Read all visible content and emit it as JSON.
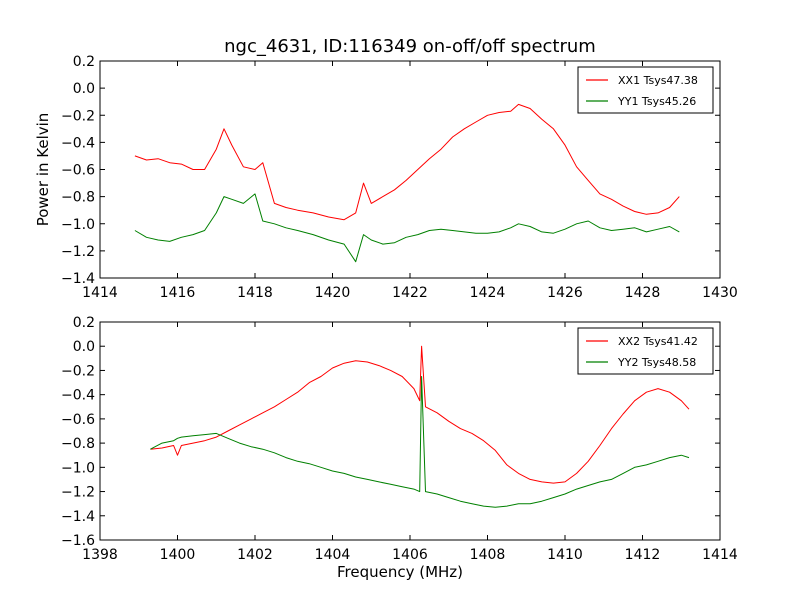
{
  "figure": {
    "title": "ngc_4631, ID:116349 on-off/off spectrum"
  },
  "chart_data": [
    {
      "type": "line",
      "title": "ngc_4631, ID:116349 on-off/off spectrum",
      "xlabel": "",
      "ylabel": "Power in Kelvin",
      "xlim": [
        1414,
        1430
      ],
      "ylim": [
        -1.4,
        0.2
      ],
      "xticks": [
        "1414",
        "1416",
        "1418",
        "1420",
        "1422",
        "1424",
        "1426",
        "1428",
        "1430"
      ],
      "yticks": [
        "0.2",
        "0.0",
        "−0.2",
        "−0.4",
        "−0.6",
        "−0.8",
        "−1.0",
        "−1.2",
        "−1.4"
      ],
      "grid": false,
      "legend_position": "top-right",
      "series": [
        {
          "name": "XX1 Tsys47.38",
          "color": "#ff0000",
          "x": [
            1414.9,
            1415.2,
            1415.5,
            1415.8,
            1416.1,
            1416.4,
            1416.7,
            1417.0,
            1417.2,
            1417.4,
            1417.7,
            1418.0,
            1418.2,
            1418.5,
            1418.8,
            1419.1,
            1419.5,
            1419.9,
            1420.3,
            1420.6,
            1420.8,
            1421.0,
            1421.3,
            1421.6,
            1421.9,
            1422.2,
            1422.5,
            1422.8,
            1423.1,
            1423.4,
            1423.7,
            1424.0,
            1424.3,
            1424.6,
            1424.8,
            1425.1,
            1425.4,
            1425.7,
            1426.0,
            1426.3,
            1426.6,
            1426.9,
            1427.2,
            1427.5,
            1427.8,
            1428.1,
            1428.4,
            1428.7,
            1428.95
          ],
          "values": [
            -0.5,
            -0.53,
            -0.52,
            -0.55,
            -0.56,
            -0.6,
            -0.6,
            -0.45,
            -0.3,
            -0.42,
            -0.58,
            -0.6,
            -0.55,
            -0.85,
            -0.88,
            -0.9,
            -0.92,
            -0.95,
            -0.97,
            -0.92,
            -0.7,
            -0.85,
            -0.8,
            -0.75,
            -0.68,
            -0.6,
            -0.52,
            -0.45,
            -0.36,
            -0.3,
            -0.25,
            -0.2,
            -0.18,
            -0.17,
            -0.12,
            -0.15,
            -0.23,
            -0.3,
            -0.42,
            -0.58,
            -0.68,
            -0.78,
            -0.82,
            -0.87,
            -0.91,
            -0.93,
            -0.92,
            -0.88,
            -0.8
          ]
        },
        {
          "name": "YY1 Tsys45.26",
          "color": "#008000",
          "x": [
            1414.9,
            1415.2,
            1415.5,
            1415.8,
            1416.1,
            1416.4,
            1416.7,
            1417.0,
            1417.2,
            1417.4,
            1417.7,
            1418.0,
            1418.2,
            1418.5,
            1418.8,
            1419.1,
            1419.5,
            1419.9,
            1420.3,
            1420.6,
            1420.8,
            1421.0,
            1421.3,
            1421.6,
            1421.9,
            1422.2,
            1422.5,
            1422.8,
            1423.1,
            1423.4,
            1423.7,
            1424.0,
            1424.3,
            1424.6,
            1424.8,
            1425.1,
            1425.4,
            1425.7,
            1426.0,
            1426.3,
            1426.6,
            1426.9,
            1427.2,
            1427.5,
            1427.8,
            1428.1,
            1428.4,
            1428.7,
            1428.95
          ],
          "values": [
            -1.05,
            -1.1,
            -1.12,
            -1.13,
            -1.1,
            -1.08,
            -1.05,
            -0.92,
            -0.8,
            -0.82,
            -0.85,
            -0.78,
            -0.98,
            -1.0,
            -1.03,
            -1.05,
            -1.08,
            -1.12,
            -1.15,
            -1.28,
            -1.08,
            -1.12,
            -1.15,
            -1.14,
            -1.1,
            -1.08,
            -1.05,
            -1.04,
            -1.05,
            -1.06,
            -1.07,
            -1.07,
            -1.06,
            -1.03,
            -1.0,
            -1.02,
            -1.06,
            -1.07,
            -1.04,
            -1.0,
            -0.98,
            -1.03,
            -1.05,
            -1.04,
            -1.03,
            -1.06,
            -1.04,
            -1.02,
            -1.06
          ]
        }
      ]
    },
    {
      "type": "line",
      "title": "",
      "xlabel": "Frequency (MHz)",
      "ylabel": "",
      "xlim": [
        1398,
        1414
      ],
      "ylim": [
        -1.6,
        0.2
      ],
      "xticks": [
        "1398",
        "1400",
        "1402",
        "1404",
        "1406",
        "1408",
        "1410",
        "1412",
        "1414"
      ],
      "yticks": [
        "0.2",
        "0.0",
        "−0.2",
        "−0.4",
        "−0.6",
        "−0.8",
        "−1.0",
        "−1.2",
        "−1.4",
        "−1.6"
      ],
      "grid": false,
      "legend_position": "top-right",
      "series": [
        {
          "name": "XX2 Tsys41.42",
          "color": "#ff0000",
          "x": [
            1399.3,
            1399.6,
            1399.9,
            1400.0,
            1400.1,
            1400.4,
            1400.7,
            1401.0,
            1401.3,
            1401.6,
            1401.9,
            1402.2,
            1402.5,
            1402.8,
            1403.1,
            1403.4,
            1403.7,
            1404.0,
            1404.3,
            1404.6,
            1404.9,
            1405.2,
            1405.5,
            1405.8,
            1406.1,
            1406.25,
            1406.3,
            1406.4,
            1406.7,
            1407.0,
            1407.3,
            1407.6,
            1407.9,
            1408.2,
            1408.5,
            1408.8,
            1409.1,
            1409.4,
            1409.7,
            1410.0,
            1410.3,
            1410.6,
            1410.9,
            1411.2,
            1411.5,
            1411.8,
            1412.1,
            1412.4,
            1412.7,
            1413.0,
            1413.2
          ],
          "values": [
            -0.85,
            -0.84,
            -0.82,
            -0.9,
            -0.82,
            -0.8,
            -0.78,
            -0.75,
            -0.7,
            -0.65,
            -0.6,
            -0.55,
            -0.5,
            -0.44,
            -0.38,
            -0.3,
            -0.25,
            -0.18,
            -0.14,
            -0.12,
            -0.13,
            -0.16,
            -0.2,
            -0.25,
            -0.35,
            -0.45,
            0.0,
            -0.5,
            -0.55,
            -0.62,
            -0.68,
            -0.72,
            -0.78,
            -0.86,
            -0.98,
            -1.05,
            -1.1,
            -1.12,
            -1.13,
            -1.12,
            -1.05,
            -0.95,
            -0.82,
            -0.68,
            -0.56,
            -0.45,
            -0.38,
            -0.35,
            -0.38,
            -0.45,
            -0.52
          ]
        },
        {
          "name": "YY2 Tsys48.58",
          "color": "#008000",
          "x": [
            1399.3,
            1399.6,
            1399.9,
            1400.0,
            1400.1,
            1400.4,
            1400.7,
            1401.0,
            1401.3,
            1401.6,
            1401.9,
            1402.2,
            1402.5,
            1402.8,
            1403.1,
            1403.4,
            1403.7,
            1404.0,
            1404.3,
            1404.6,
            1404.9,
            1405.2,
            1405.5,
            1405.8,
            1406.1,
            1406.25,
            1406.3,
            1406.4,
            1406.7,
            1407.0,
            1407.3,
            1407.6,
            1407.9,
            1408.2,
            1408.5,
            1408.8,
            1409.1,
            1409.4,
            1409.7,
            1410.0,
            1410.3,
            1410.6,
            1410.9,
            1411.2,
            1411.5,
            1411.8,
            1412.1,
            1412.4,
            1412.7,
            1413.0,
            1413.2
          ],
          "values": [
            -0.85,
            -0.8,
            -0.78,
            -0.76,
            -0.75,
            -0.74,
            -0.73,
            -0.72,
            -0.76,
            -0.8,
            -0.83,
            -0.85,
            -0.88,
            -0.92,
            -0.95,
            -0.97,
            -1.0,
            -1.03,
            -1.05,
            -1.08,
            -1.1,
            -1.12,
            -1.14,
            -1.16,
            -1.18,
            -1.2,
            -0.25,
            -1.2,
            -1.22,
            -1.25,
            -1.28,
            -1.3,
            -1.32,
            -1.33,
            -1.32,
            -1.3,
            -1.3,
            -1.28,
            -1.25,
            -1.22,
            -1.18,
            -1.15,
            -1.12,
            -1.1,
            -1.05,
            -1.0,
            -0.98,
            -0.95,
            -0.92,
            -0.9,
            -0.92
          ]
        }
      ]
    }
  ]
}
